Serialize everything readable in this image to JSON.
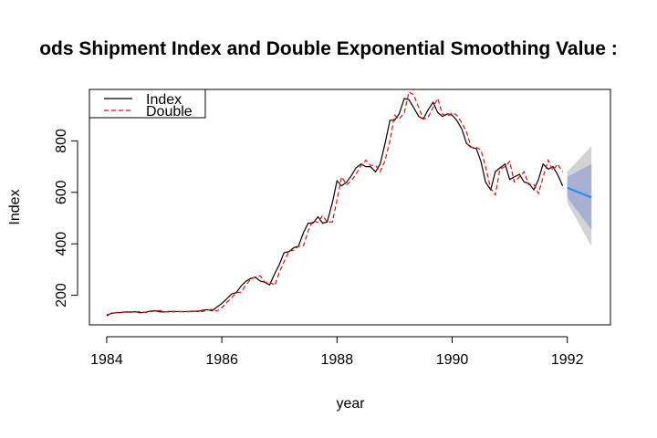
{
  "chart_data": {
    "type": "line",
    "title": "ods Shipment Index and Double Exponential Smoothing Value :",
    "xlabel": "year",
    "ylabel": "Index",
    "xlim": [
      1983.7,
      1992.75
    ],
    "ylim": [
      85,
      1000
    ],
    "x_ticks": [
      1984,
      1986,
      1988,
      1990,
      1992
    ],
    "x_tick_labels": [
      "1984",
      "1986",
      "1988",
      "1990",
      "1992"
    ],
    "y_ticks": [
      200,
      400,
      600,
      800
    ],
    "y_tick_labels": [
      "200",
      "400",
      "600",
      "800"
    ],
    "grid": false,
    "legend": {
      "position": "top-left",
      "entries": [
        {
          "label": "Index",
          "color": "#000000",
          "style": "solid"
        },
        {
          "label": "Double",
          "color": "#ff0000",
          "style": "dashed"
        }
      ]
    },
    "series": [
      {
        "name": "Index",
        "color": "#000000",
        "x": [
          1984.0,
          1984.08,
          1984.17,
          1984.25,
          1984.33,
          1984.42,
          1984.5,
          1984.58,
          1984.67,
          1984.75,
          1984.83,
          1984.92,
          1985.0,
          1985.08,
          1985.17,
          1985.25,
          1985.33,
          1985.42,
          1985.5,
          1985.58,
          1985.67,
          1985.75,
          1985.83,
          1985.92,
          1986.0,
          1986.08,
          1986.17,
          1986.25,
          1986.33,
          1986.42,
          1986.5,
          1986.58,
          1986.67,
          1986.75,
          1986.83,
          1986.92,
          1987.0,
          1987.08,
          1987.17,
          1987.25,
          1987.33,
          1987.42,
          1987.5,
          1987.58,
          1987.67,
          1987.75,
          1987.83,
          1987.92,
          1988.0,
          1988.08,
          1988.17,
          1988.25,
          1988.33,
          1988.42,
          1988.5,
          1988.58,
          1988.67,
          1988.75,
          1988.83,
          1988.92,
          1989.0,
          1989.08,
          1989.17,
          1989.25,
          1989.33,
          1989.42,
          1989.5,
          1989.58,
          1989.67,
          1989.75,
          1989.83,
          1989.92,
          1990.0,
          1990.08,
          1990.17,
          1990.25,
          1990.33,
          1990.42,
          1990.5,
          1990.58,
          1990.67,
          1990.75,
          1990.83,
          1990.92,
          1991.0,
          1991.08,
          1991.17,
          1991.25,
          1991.33,
          1991.42,
          1991.5,
          1991.58,
          1991.67,
          1991.75,
          1991.83,
          1991.92
        ],
        "values": [
          120,
          130,
          132,
          133,
          135,
          134,
          136,
          132,
          134,
          138,
          140,
          136,
          135,
          137,
          136,
          137,
          136,
          137,
          138,
          137,
          142,
          144,
          140,
          155,
          168,
          185,
          205,
          210,
          235,
          255,
          265,
          270,
          255,
          250,
          240,
          285,
          320,
          365,
          370,
          385,
          390,
          445,
          480,
          480,
          505,
          480,
          485,
          560,
          645,
          625,
          640,
          665,
          695,
          710,
          700,
          700,
          680,
          710,
          785,
          880,
          880,
          905,
          965,
          960,
          930,
          895,
          885,
          920,
          950,
          910,
          895,
          905,
          900,
          880,
          845,
          790,
          775,
          770,
          720,
          640,
          610,
          680,
          695,
          710,
          650,
          660,
          670,
          640,
          635,
          610,
          650,
          710,
          690,
          700,
          670,
          625
        ]
      },
      {
        "name": "Double",
        "color": "#ff0000",
        "x": [
          1984.0,
          1984.08,
          1984.17,
          1984.25,
          1984.33,
          1984.42,
          1984.5,
          1984.58,
          1984.67,
          1984.75,
          1984.83,
          1984.92,
          1985.0,
          1985.08,
          1985.17,
          1985.25,
          1985.33,
          1985.42,
          1985.5,
          1985.58,
          1985.67,
          1985.75,
          1985.83,
          1985.92,
          1986.0,
          1986.08,
          1986.17,
          1986.25,
          1986.33,
          1986.42,
          1986.5,
          1986.58,
          1986.67,
          1986.75,
          1986.83,
          1986.92,
          1987.0,
          1987.08,
          1987.17,
          1987.25,
          1987.33,
          1987.42,
          1987.5,
          1987.58,
          1987.67,
          1987.75,
          1987.83,
          1987.92,
          1988.0,
          1988.08,
          1988.17,
          1988.25,
          1988.33,
          1988.42,
          1988.5,
          1988.58,
          1988.67,
          1988.75,
          1988.83,
          1988.92,
          1989.0,
          1989.08,
          1989.17,
          1989.25,
          1989.33,
          1989.42,
          1989.5,
          1989.58,
          1989.67,
          1989.75,
          1989.83,
          1989.92,
          1990.0,
          1990.08,
          1990.17,
          1990.25,
          1990.33,
          1990.42,
          1990.5,
          1990.58,
          1990.67,
          1990.75,
          1990.83,
          1990.92,
          1991.0,
          1991.08,
          1991.17,
          1991.25,
          1991.33,
          1991.42,
          1991.5,
          1991.58,
          1991.67,
          1991.75,
          1991.83,
          1991.92
        ],
        "values": [
          125,
          128,
          133,
          134,
          135,
          136,
          135,
          136,
          133,
          135,
          139,
          141,
          136,
          135,
          138,
          136,
          137,
          136,
          137,
          139,
          137,
          143,
          145,
          139,
          152,
          170,
          190,
          210,
          212,
          240,
          262,
          272,
          275,
          250,
          252,
          238,
          290,
          330,
          372,
          375,
          390,
          393,
          450,
          490,
          483,
          510,
          485,
          485,
          570,
          660,
          630,
          645,
          670,
          705,
          725,
          705,
          705,
          680,
          720,
          800,
          900,
          885,
          910,
          990,
          980,
          930,
          885,
          890,
          930,
          965,
          905,
          895,
          910,
          900,
          870,
          835,
          775,
          775,
          765,
          700,
          615,
          590,
          690,
          700,
          720,
          640,
          660,
          680,
          630,
          632,
          595,
          660,
          725,
          685,
          710,
          680
        ]
      },
      {
        "name": "forecast",
        "color": "#1e90ff",
        "x": [
          1992.0,
          1992.42
        ],
        "values": [
          618,
          580
        ]
      }
    ],
    "forecast_bands": [
      {
        "level": "95",
        "color": "#d3d3d3",
        "x": [
          1992.0,
          1992.42
        ],
        "lower": [
          560,
          390
        ],
        "upper": [
          680,
          780
        ]
      },
      {
        "level": "80",
        "color": "#a9afd1",
        "x": [
          1992.0,
          1992.42
        ],
        "lower": [
          580,
          455
        ],
        "upper": [
          660,
          710
        ]
      }
    ]
  }
}
